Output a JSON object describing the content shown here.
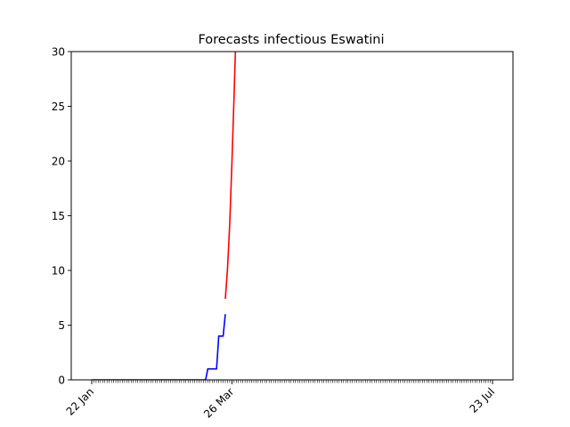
{
  "chart_data": {
    "type": "line",
    "title": "Forecasts infectious Eswatini",
    "xlabel": "",
    "ylabel": "",
    "x_range": [
      "2020-01-22",
      "2020-07-23"
    ],
    "ylim": [
      0,
      30
    ],
    "y_ticks": [
      0,
      5,
      10,
      15,
      20,
      25,
      30
    ],
    "x_tick_labels": [
      {
        "date": "2020-01-22",
        "label": "22 Jan"
      },
      {
        "date": "2020-03-26",
        "label": "26 Mar"
      },
      {
        "date": "2020-07-23",
        "label": "23 Jul"
      }
    ],
    "x_minor_ticks": "daily",
    "grid": false,
    "series": [
      {
        "color": "#0000ff",
        "points": [
          [
            "2020-01-22",
            0
          ],
          [
            "2020-03-14",
            0
          ],
          [
            "2020-03-15",
            1
          ],
          [
            "2020-03-16",
            1
          ],
          [
            "2020-03-17",
            1
          ],
          [
            "2020-03-18",
            1
          ],
          [
            "2020-03-19",
            1
          ],
          [
            "2020-03-20",
            4
          ],
          [
            "2020-03-21",
            4
          ],
          [
            "2020-03-22",
            4
          ],
          [
            "2020-03-23",
            6
          ]
        ]
      },
      {
        "color": "#ff0000",
        "points": [
          [
            "2020-03-23",
            7.4
          ],
          [
            "2020-03-24",
            10.2
          ],
          [
            "2020-03-25",
            14.2
          ],
          [
            "2020-03-26",
            19.8
          ],
          [
            "2020-03-27",
            26.0
          ],
          [
            "2020-03-27.6",
            30.0
          ]
        ]
      }
    ]
  }
}
